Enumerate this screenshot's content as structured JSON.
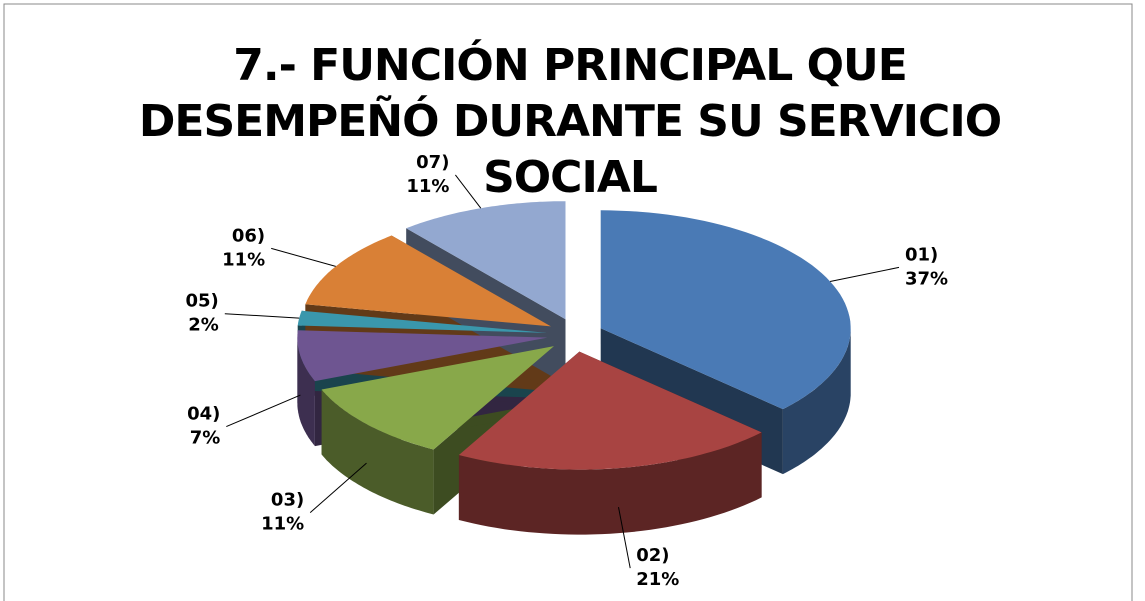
{
  "chart_data": {
    "type": "pie",
    "title": "7.- FUNCIÓN PRINCIPAL QUE DESEMPEÑÓ DURANTE SU SERVICIO SOCIAL",
    "categories": [
      "01)",
      "02)",
      "03)",
      "04)",
      "05)",
      "06)",
      "07)"
    ],
    "values": [
      37,
      21,
      11,
      7,
      2,
      11,
      11
    ],
    "value_labels": [
      "37%",
      "21%",
      "11%",
      "7%",
      "2%",
      "11%",
      "11%"
    ],
    "colors": [
      "#4a7ab5",
      "#a84442",
      "#88a84a",
      "#6e5591",
      "#3a97ac",
      "#d98036",
      "#93a8d0"
    ]
  }
}
